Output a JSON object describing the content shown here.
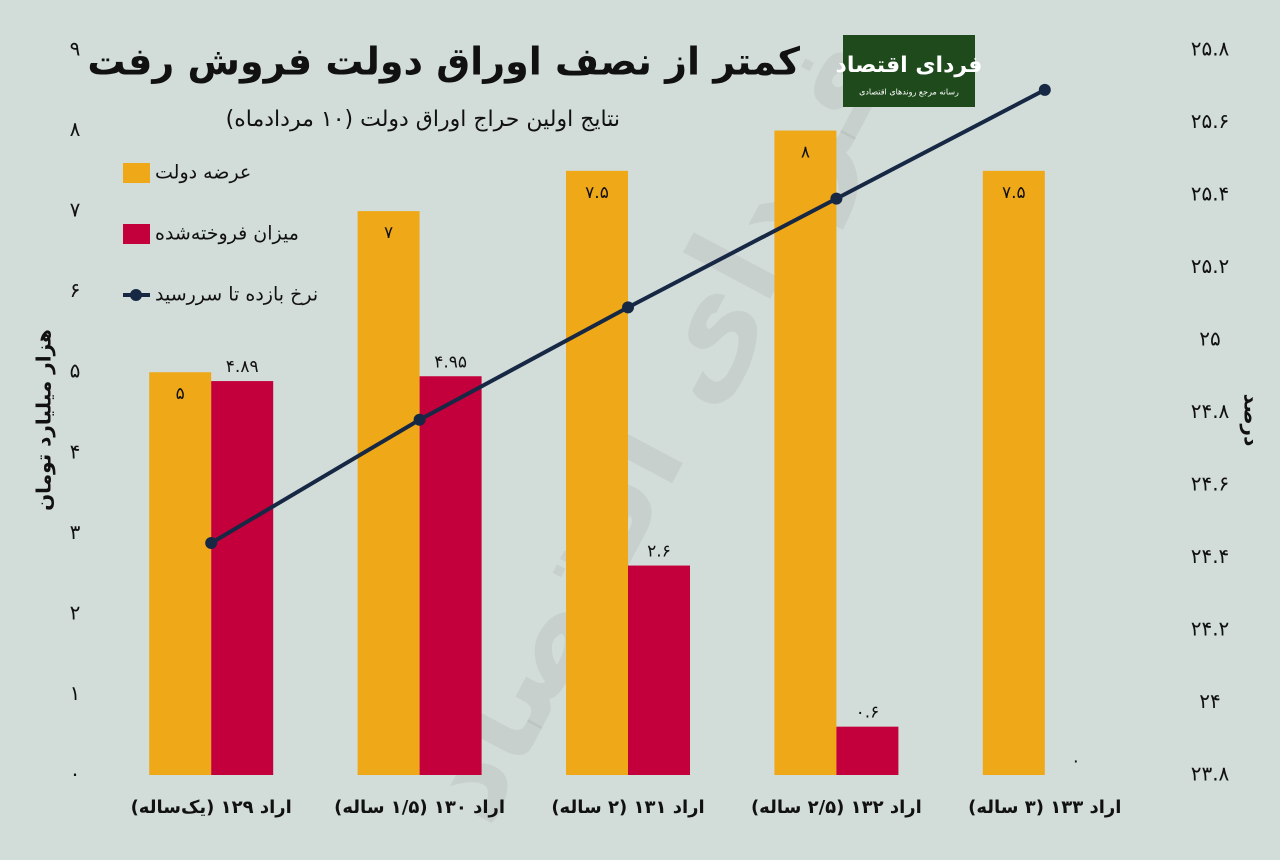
{
  "logo": {
    "name": "فردای اقتصاد",
    "tagline": "رسانه مرجع روندهای اقتصادی"
  },
  "chart_data": {
    "type": "bar",
    "title": "کمتر از نصف اوراق دولت فروش رفت",
    "subtitle": "نتایج اولین حراج اوراق دولت (۱۰ مردادماه)",
    "ylabel": "هزار میلیارد تومان",
    "y2label": "درصد",
    "categories": [
      "اراد ۱۲۹ (یک‌ساله)",
      "اراد ۱۳۰ (۱/۵ ساله)",
      "اراد ۱۳۱ (۲ ساله)",
      "اراد ۱۳۲ (۲/۵ ساله)",
      "اراد ۱۳۳ (۳ ساله)"
    ],
    "series": [
      {
        "name": "عرضه دولت",
        "type": "bar",
        "color": "#efa818",
        "values": [
          5,
          7,
          7.5,
          8,
          7.5
        ],
        "value_labels": [
          "۵",
          "۷",
          "۷.۵",
          "۸",
          "۷.۵"
        ]
      },
      {
        "name": "میزان فروخته‌شده",
        "type": "bar",
        "color": "#c4003c",
        "values": [
          4.89,
          4.95,
          2.6,
          0.6,
          0
        ],
        "value_labels": [
          "۴.۸۹",
          "۴.۹۵",
          "۲.۶",
          "۰.۶",
          "۰"
        ]
      },
      {
        "name": "نرخ بازده تا سررسید",
        "type": "line",
        "axis": "y2",
        "color": "#172844",
        "values": [
          24.44,
          24.78,
          25.09,
          25.39,
          25.69
        ]
      }
    ],
    "ylim": [
      0,
      9
    ],
    "yticks": [
      {
        "value": 0,
        "label": "۰"
      },
      {
        "value": 1,
        "label": "۱"
      },
      {
        "value": 2,
        "label": "۲"
      },
      {
        "value": 3,
        "label": "۳"
      },
      {
        "value": 4,
        "label": "۴"
      },
      {
        "value": 5,
        "label": "۵"
      },
      {
        "value": 6,
        "label": "۶"
      },
      {
        "value": 7,
        "label": "۷"
      },
      {
        "value": 8,
        "label": "۸"
      },
      {
        "value": 9,
        "label": "۹"
      }
    ],
    "y2lim": [
      23.8,
      25.8
    ],
    "y2ticks": [
      {
        "value": 23.8,
        "label": "۲۳.۸"
      },
      {
        "value": 24,
        "label": "۲۴"
      },
      {
        "value": 24.2,
        "label": "۲۴.۲"
      },
      {
        "value": 24.4,
        "label": "۲۴.۴"
      },
      {
        "value": 24.6,
        "label": "۲۴.۶"
      },
      {
        "value": 24.8,
        "label": "۲۴.۸"
      },
      {
        "value": 25,
        "label": "۲۵"
      },
      {
        "value": 25.2,
        "label": "۲۵.۲"
      },
      {
        "value": 25.4,
        "label": "۲۵.۴"
      },
      {
        "value": 25.6,
        "label": "۲۵.۶"
      },
      {
        "value": 25.8,
        "label": "۲۵.۸"
      }
    ],
    "legend": "top-left",
    "grid": false
  }
}
